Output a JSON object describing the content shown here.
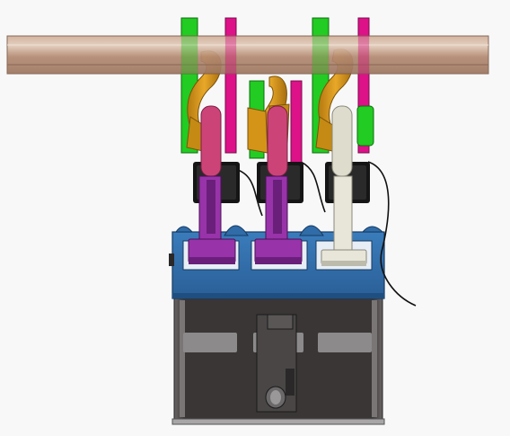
{
  "scene": {
    "background": "#f8f8f9",
    "colors": {
      "rail": "#b8917a",
      "rail_light": "#dcc4b2",
      "green": "#22cc22",
      "magenta": "#dd1188",
      "gold": "#d49418",
      "gold_dark": "#9a6a10",
      "pink": "#cc4477",
      "purple": "#9933aa",
      "purple_dark": "#6a1f7a",
      "white_part": "#dedccc",
      "black_part": "#151515",
      "blue": "#2f6ca8",
      "blue_dark": "#1f4f80",
      "housing": "#3f3b3b",
      "housing_light": "#8a8888",
      "wire": "#111111"
    },
    "parts": [
      {
        "id": "rail",
        "label": ""
      },
      {
        "id": "left-hook-assembly",
        "label": ""
      },
      {
        "id": "center-hook-assembly",
        "label": ""
      },
      {
        "id": "right-hook-assembly",
        "label": ""
      },
      {
        "id": "left-lever",
        "label": ""
      },
      {
        "id": "center-lever",
        "label": ""
      },
      {
        "id": "right-lever",
        "label": ""
      },
      {
        "id": "blue-frame",
        "label": ""
      },
      {
        "id": "housing-body",
        "label": ""
      },
      {
        "id": "cable",
        "label": ""
      }
    ]
  }
}
